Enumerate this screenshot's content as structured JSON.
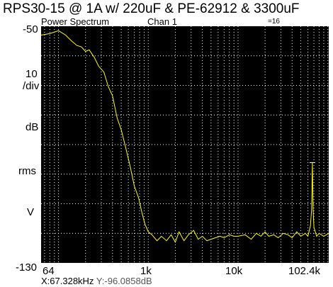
{
  "chart_data": {
    "type": "line",
    "title": "RPS30-15 @ 1A  w/ 220uF & PE-62912 & 3300uF",
    "subtitle_left": "Power Spectrum",
    "subtitle_mid": "Chan 1",
    "subtitle_right": "=16",
    "ylabel_parts": [
      "10",
      "/div",
      "dB",
      "rms",
      "V"
    ],
    "ylim": [
      -130,
      -50
    ],
    "y_top_label": "-50",
    "y_bottom_label": "-130",
    "xscale": "log",
    "xlim": [
      64,
      102400
    ],
    "xticks": [
      {
        "value": 64,
        "label": "64"
      },
      {
        "value": 1000,
        "label": "1k"
      },
      {
        "value": 10000,
        "label": "10k"
      },
      {
        "value": 102400,
        "label": "102.4k"
      }
    ],
    "grid": true,
    "readout_x": "X:67.328kHz",
    "readout_y": "Y:-96.0858dB",
    "colors": {
      "trace": "#ffff00",
      "background": "#000000",
      "grid": "#ffffff"
    },
    "series": [
      {
        "x": [
          64,
          80,
          100,
          120,
          140,
          160,
          180,
          200,
          220,
          250,
          280,
          320,
          360,
          400,
          450,
          500,
          560,
          630,
          700,
          780,
          850,
          920,
          1000,
          1100,
          1250,
          1400,
          1600,
          1800,
          2000,
          2200,
          2500,
          2800,
          3200,
          3600,
          4000,
          4500,
          5000,
          5600,
          6300,
          7000,
          8000,
          9000,
          10000,
          12000,
          14000,
          16000,
          18000,
          20000,
          22000,
          25000,
          28000,
          32000,
          36000,
          40000,
          45000,
          50000,
          56000,
          60000,
          64000,
          66000,
          67328,
          68500,
          70000,
          75000,
          80000,
          90000,
          102400
        ],
        "y": [
          -53,
          -52.5,
          -51.5,
          -53,
          -55,
          -56.5,
          -57,
          -58.5,
          -58,
          -60.5,
          -63.5,
          -65.5,
          -70.5,
          -73.5,
          -81,
          -85,
          -91,
          -97.5,
          -104,
          -108,
          -113,
          -117,
          -119.5,
          -120.5,
          -122.5,
          -121,
          -122.5,
          -120.5,
          -123,
          -119.5,
          -122.5,
          -120.5,
          -119,
          -122,
          -121,
          -122.5,
          -122,
          -121.5,
          -121,
          -121.5,
          -120.5,
          -121,
          -121,
          -120.5,
          -122,
          -120,
          -121,
          -119.5,
          -121,
          -120.5,
          -121.5,
          -120,
          -120.5,
          -121.5,
          -119.5,
          -121,
          -120,
          -121,
          -117.5,
          -112,
          -96,
          -112,
          -118,
          -121,
          -120,
          -121,
          -120
        ]
      }
    ]
  }
}
